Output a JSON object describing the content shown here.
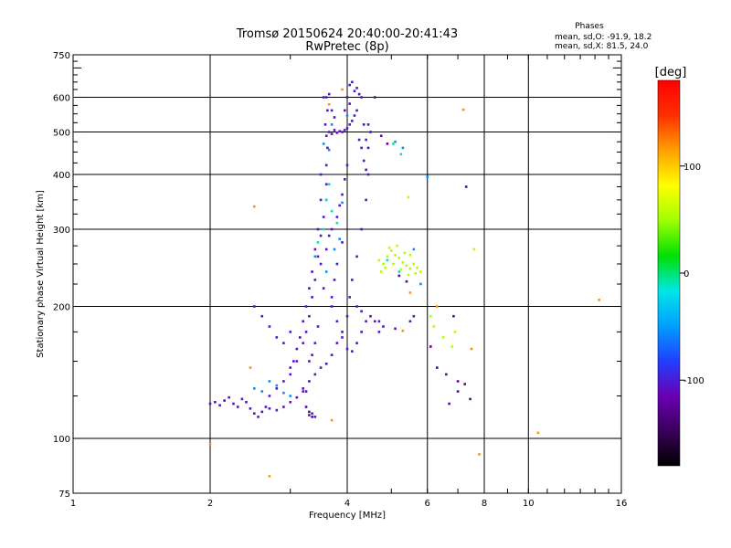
{
  "chart_data": {
    "type": "scatter",
    "title": "Tromsø 20150624 20:40:00-20:41:43",
    "subtitle": "RwPretec (8p)",
    "stats": {
      "heading": "Phases",
      "line1": "mean, sd,O: -91.9, 18.2",
      "line2": "mean, sd,X:  81.5, 24.0"
    },
    "xlabel": "Frequency [MHz]",
    "ylabel": "Stationary phase Virtual Height [km]",
    "xscale": "log",
    "yscale": "log",
    "xlim": [
      1,
      16
    ],
    "ylim": [
      75,
      750
    ],
    "xticks": [
      1,
      2,
      4,
      6,
      8,
      10,
      16
    ],
    "xtick_labels": [
      "1",
      "2",
      "4",
      "6",
      "8",
      "10",
      "16"
    ],
    "xgrid": [
      2,
      4,
      6,
      8,
      10
    ],
    "yticks": [
      75,
      100,
      200,
      300,
      400,
      500,
      600,
      750
    ],
    "ytick_labels": [
      "75",
      "100",
      "200",
      "300",
      "400",
      "500",
      "600",
      "750"
    ],
    "ygrid": [
      100,
      200,
      300,
      400,
      500,
      600
    ],
    "grid": true,
    "colorbar": {
      "label": "[deg]",
      "range": [
        -180,
        180
      ],
      "ticks": [
        100,
        0,
        -100
      ],
      "tick_labels": [
        "100",
        "0",
        "-100"
      ],
      "colors": [
        "#000000",
        "#3a005a",
        "#6a00b4",
        "#2040ff",
        "#00a0ff",
        "#00e6e6",
        "#00e000",
        "#a0ff00",
        "#ffff00",
        "#ffa000",
        "#ff3000",
        "#ff0000"
      ]
    },
    "series": [
      {
        "color_value": -105,
        "points": [
          [
            2.0,
            120
          ],
          [
            2.05,
            121
          ],
          [
            2.1,
            119
          ],
          [
            2.15,
            122
          ],
          [
            2.2,
            124
          ],
          [
            2.25,
            120
          ],
          [
            2.3,
            118
          ],
          [
            2.35,
            123
          ],
          [
            2.4,
            121
          ],
          [
            2.45,
            117
          ],
          [
            2.5,
            114
          ],
          [
            2.55,
            112
          ],
          [
            2.6,
            115
          ],
          [
            2.65,
            118
          ],
          [
            2.7,
            117
          ],
          [
            2.8,
            116
          ],
          [
            2.9,
            118
          ],
          [
            3.0,
            121
          ],
          [
            3.1,
            124
          ],
          [
            3.2,
            130
          ],
          [
            3.25,
            128
          ],
          [
            3.3,
            113
          ],
          [
            3.35,
            114
          ],
          [
            3.4,
            112
          ],
          [
            3.0,
            140
          ],
          [
            3.1,
            150
          ],
          [
            3.2,
            165
          ],
          [
            3.25,
            175
          ],
          [
            3.3,
            190
          ],
          [
            3.35,
            210
          ],
          [
            3.4,
            230
          ],
          [
            3.45,
            260
          ],
          [
            3.5,
            290
          ],
          [
            3.55,
            320
          ],
          [
            3.6,
            350
          ],
          [
            3.6,
            380
          ],
          [
            3.6,
            420
          ],
          [
            3.62,
            460
          ],
          [
            3.6,
            490
          ],
          [
            3.65,
            500
          ],
          [
            3.7,
            495
          ],
          [
            3.75,
            505
          ],
          [
            3.8,
            498
          ],
          [
            3.85,
            502
          ],
          [
            3.9,
            500
          ],
          [
            3.95,
            505
          ],
          [
            4.0,
            510
          ],
          [
            4.05,
            520
          ],
          [
            4.1,
            530
          ],
          [
            4.15,
            545
          ],
          [
            4.2,
            560
          ],
          [
            3.95,
            560
          ],
          [
            4.0,
            600
          ],
          [
            4.05,
            640
          ],
          [
            4.1,
            650
          ],
          [
            4.2,
            630
          ],
          [
            4.3,
            600
          ],
          [
            4.35,
            520
          ],
          [
            4.4,
            480
          ],
          [
            4.45,
            400
          ],
          [
            4.4,
            350
          ],
          [
            4.3,
            300
          ],
          [
            4.2,
            260
          ],
          [
            4.1,
            230
          ],
          [
            4.05,
            210
          ],
          [
            4.0,
            190
          ],
          [
            3.9,
            175
          ],
          [
            3.8,
            165
          ],
          [
            3.7,
            155
          ],
          [
            3.6,
            148
          ],
          [
            3.5,
            145
          ],
          [
            3.4,
            140
          ],
          [
            3.3,
            135
          ],
          [
            3.2,
            128
          ],
          [
            3.6,
            600
          ],
          [
            3.62,
            560
          ],
          [
            3.58,
            520
          ],
          [
            3.7,
            200
          ],
          [
            3.8,
            185
          ],
          [
            3.9,
            170
          ],
          [
            4.0,
            160
          ],
          [
            4.1,
            158
          ],
          [
            4.2,
            165
          ],
          [
            4.3,
            175
          ],
          [
            4.4,
            185
          ],
          [
            3.5,
            400
          ],
          [
            3.5,
            350
          ],
          [
            3.45,
            300
          ],
          [
            3.4,
            270
          ],
          [
            3.35,
            240
          ],
          [
            3.3,
            220
          ],
          [
            3.25,
            200
          ],
          [
            3.2,
            185
          ],
          [
            3.15,
            170
          ],
          [
            3.1,
            160
          ],
          [
            3.05,
            150
          ],
          [
            3.0,
            145
          ],
          [
            2.9,
            135
          ],
          [
            2.8,
            130
          ],
          [
            2.7,
            125
          ],
          [
            3.7,
            300
          ],
          [
            3.8,
            320
          ],
          [
            3.85,
            340
          ],
          [
            3.9,
            360
          ],
          [
            3.95,
            390
          ],
          [
            4.0,
            420
          ],
          [
            3.9,
            280
          ],
          [
            3.8,
            250
          ],
          [
            3.75,
            230
          ],
          [
            3.7,
            210
          ],
          [
            4.25,
            480
          ],
          [
            4.3,
            460
          ],
          [
            4.35,
            430
          ],
          [
            4.4,
            410
          ],
          [
            4.45,
            460
          ],
          [
            4.5,
            500
          ],
          [
            4.45,
            520
          ],
          [
            4.2,
            200
          ],
          [
            4.3,
            195
          ],
          [
            4.5,
            190
          ],
          [
            4.7,
            185
          ],
          [
            4.8,
            180
          ],
          [
            3.55,
            600
          ],
          [
            3.65,
            610
          ],
          [
            3.7,
            560
          ],
          [
            3.75,
            540
          ],
          [
            3.5,
            250
          ],
          [
            3.6,
            270
          ],
          [
            3.65,
            290
          ],
          [
            3.55,
            220
          ],
          [
            3.45,
            180
          ],
          [
            3.4,
            165
          ],
          [
            3.35,
            155
          ],
          [
            3.3,
            150
          ],
          [
            2.5,
            200
          ],
          [
            2.6,
            190
          ],
          [
            2.7,
            180
          ],
          [
            2.8,
            170
          ],
          [
            2.9,
            165
          ],
          [
            3.0,
            175
          ],
          [
            4.6,
            185
          ],
          [
            4.7,
            175
          ],
          [
            5.1,
            178
          ],
          [
            5.5,
            185
          ],
          [
            5.6,
            190
          ],
          [
            4.05,
            580
          ],
          [
            4.15,
            620
          ],
          [
            4.25,
            610
          ]
        ]
      },
      {
        "color_value": -55,
        "points": [
          [
            2.5,
            130
          ],
          [
            2.6,
            128
          ],
          [
            2.7,
            135
          ],
          [
            2.8,
            132
          ],
          [
            2.9,
            127
          ],
          [
            3.0,
            125
          ],
          [
            3.4,
            260
          ],
          [
            3.6,
            240
          ],
          [
            3.75,
            270
          ],
          [
            3.85,
            285
          ],
          [
            3.55,
            470
          ],
          [
            3.65,
            455
          ],
          [
            3.7,
            520
          ],
          [
            4.0,
            545
          ],
          [
            5.1,
            475
          ],
          [
            5.3,
            460
          ],
          [
            5.6,
            270
          ],
          [
            5.8,
            225
          ],
          [
            6.0,
            395
          ],
          [
            3.9,
            345
          ]
        ]
      },
      {
        "color_value": -10,
        "points": [
          [
            3.6,
            350
          ],
          [
            3.65,
            380
          ],
          [
            3.7,
            330
          ],
          [
            3.55,
            300
          ],
          [
            3.45,
            280
          ],
          [
            3.8,
            310
          ],
          [
            5.05,
            470
          ],
          [
            5.25,
            445
          ],
          [
            4.9,
            255
          ],
          [
            5.2,
            240
          ]
        ]
      },
      {
        "color_value": 55,
        "points": [
          [
            4.7,
            255
          ],
          [
            4.8,
            250
          ],
          [
            4.9,
            260
          ],
          [
            5.0,
            268
          ],
          [
            5.1,
            262
          ],
          [
            5.2,
            258
          ],
          [
            5.3,
            252
          ],
          [
            5.4,
            248
          ],
          [
            5.5,
            244
          ],
          [
            5.6,
            250
          ],
          [
            5.7,
            245
          ],
          [
            5.8,
            240
          ],
          [
            4.75,
            240
          ],
          [
            4.85,
            245
          ],
          [
            5.05,
            250
          ],
          [
            5.25,
            243
          ],
          [
            5.45,
            236
          ],
          [
            5.65,
            238
          ],
          [
            4.95,
            272
          ],
          [
            5.35,
            265
          ],
          [
            5.5,
            262
          ],
          [
            5.15,
            275
          ],
          [
            5.45,
            355
          ],
          [
            6.2,
            180
          ],
          [
            6.5,
            170
          ],
          [
            6.8,
            162
          ],
          [
            6.1,
            190
          ],
          [
            7.6,
            270
          ],
          [
            6.9,
            175
          ]
        ]
      },
      {
        "color_value": 118,
        "points": [
          [
            2.5,
            338
          ],
          [
            2.7,
            82
          ],
          [
            3.9,
            625
          ],
          [
            3.65,
            578
          ],
          [
            5.3,
            176
          ],
          [
            5.5,
            215
          ],
          [
            6.3,
            200
          ],
          [
            7.2,
            562
          ],
          [
            7.8,
            92
          ],
          [
            10.5,
            103
          ],
          [
            14.3,
            207
          ],
          [
            2.45,
            145
          ],
          [
            2.0,
            97
          ],
          [
            3.7,
            110
          ],
          [
            7.5,
            160
          ]
        ]
      },
      {
        "color_value": -120,
        "points": [
          [
            4.6,
            600
          ],
          [
            4.75,
            490
          ],
          [
            4.9,
            470
          ],
          [
            5.2,
            235
          ],
          [
            5.4,
            228
          ],
          [
            6.1,
            162
          ],
          [
            6.3,
            145
          ],
          [
            6.6,
            140
          ],
          [
            7.0,
            135
          ],
          [
            7.3,
            375
          ],
          [
            7.25,
            133
          ],
          [
            7.45,
            123
          ],
          [
            7.0,
            128
          ],
          [
            6.7,
            120
          ],
          [
            3.3,
            115
          ],
          [
            3.35,
            112
          ],
          [
            3.25,
            118
          ],
          [
            6.85,
            190
          ]
        ]
      }
    ]
  }
}
